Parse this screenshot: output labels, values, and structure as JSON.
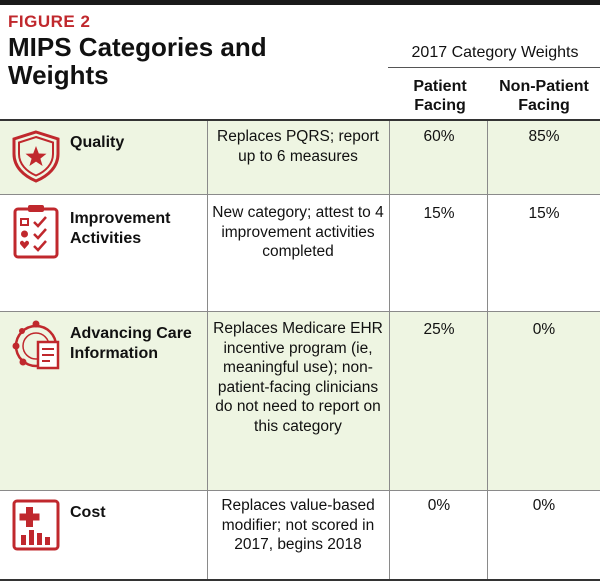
{
  "figure": {
    "label": "FIGURE 2",
    "title": "MIPS Categories and Weights"
  },
  "header": {
    "group": "2017 Category Weights",
    "col_patient": "Patient Facing",
    "col_nonpatient": "Non-Patient Facing"
  },
  "colors": {
    "accent": "#c0282d",
    "row_shade": "#eef5e2"
  },
  "rows": [
    {
      "icon": "shield-star-icon",
      "category": "Quality",
      "description": "Replaces PQRS; report up to 6 measures",
      "patient": "60%",
      "nonpatient": "85%"
    },
    {
      "icon": "clipboard-checklist-icon",
      "category": "Improvement Activities",
      "description": "New category; attest to 4 improvement activities completed",
      "patient": "15%",
      "nonpatient": "15%"
    },
    {
      "icon": "network-document-icon",
      "category": "Advancing Care Information",
      "description": "Replaces Medicare EHR incentive program (ie, meaningful use); non-patient-facing clinicians do not need to report on this category",
      "patient": "25%",
      "nonpatient": "0%"
    },
    {
      "icon": "hospital-chart-icon",
      "category": "Cost",
      "description": "Replaces value-based modifier; not scored in 2017, begins 2018",
      "patient": "0%",
      "nonpatient": "0%"
    }
  ]
}
